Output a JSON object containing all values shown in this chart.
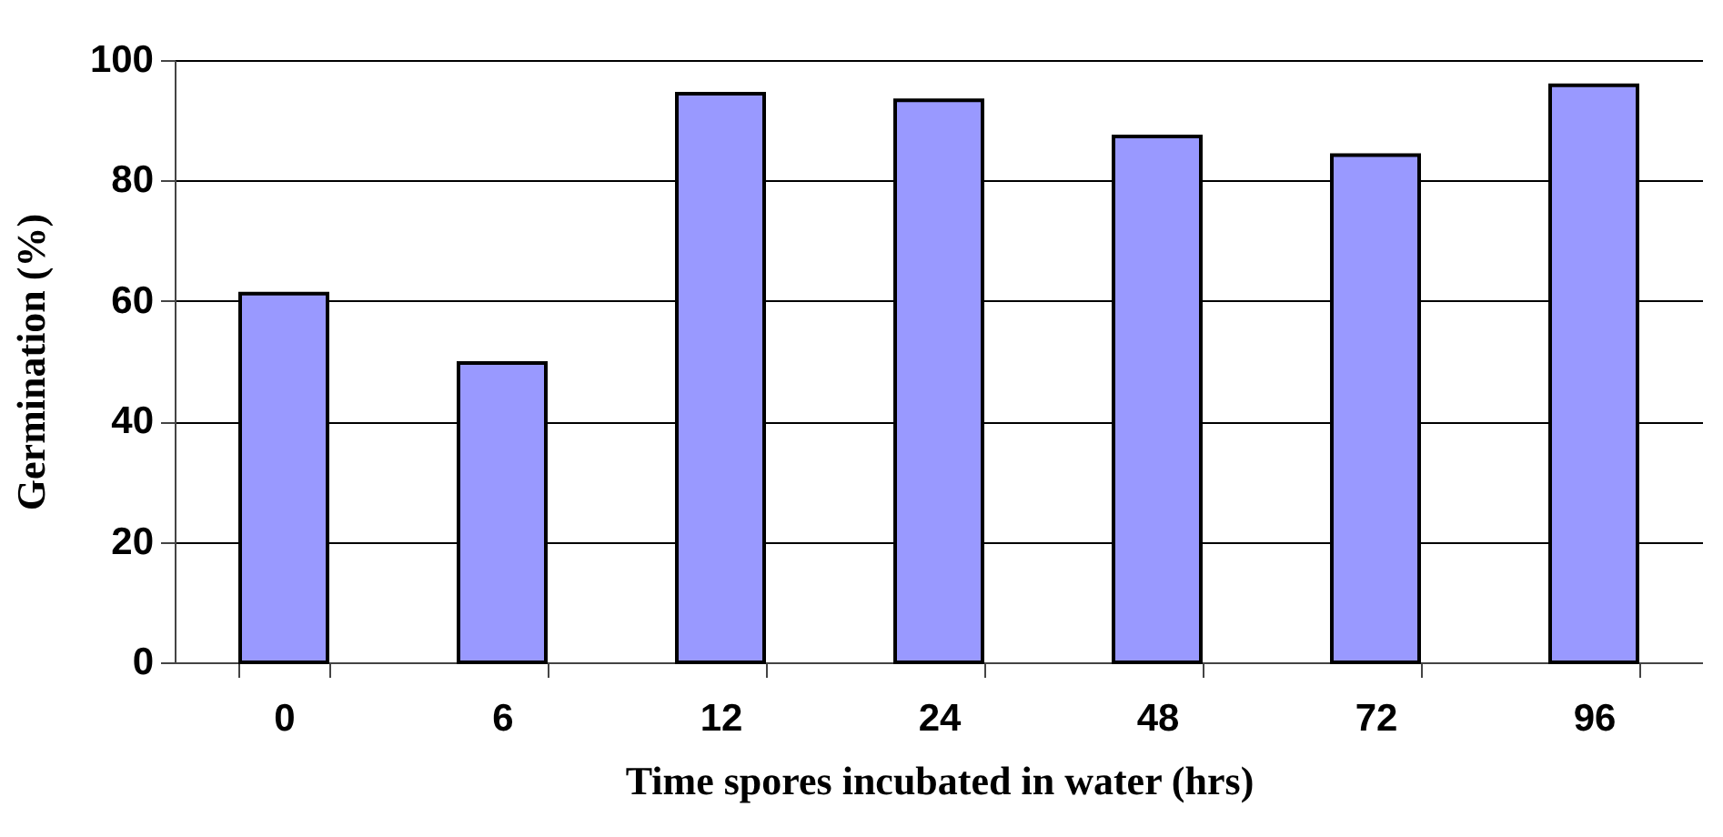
{
  "chart_data": {
    "type": "bar",
    "xlabel": "Time spores incubated in water (hrs)",
    "ylabel": "Germination (%)",
    "categories": [
      "0",
      "6",
      "12",
      "24",
      "48",
      "72",
      "96"
    ],
    "values": [
      61.2,
      49.7,
      94.4,
      93.3,
      87.3,
      84.2,
      95.8
    ],
    "color": "#9999ff",
    "ylim": [
      0,
      100
    ],
    "yticks": [
      0,
      20,
      40,
      60,
      80,
      100
    ],
    "grid": "y"
  }
}
